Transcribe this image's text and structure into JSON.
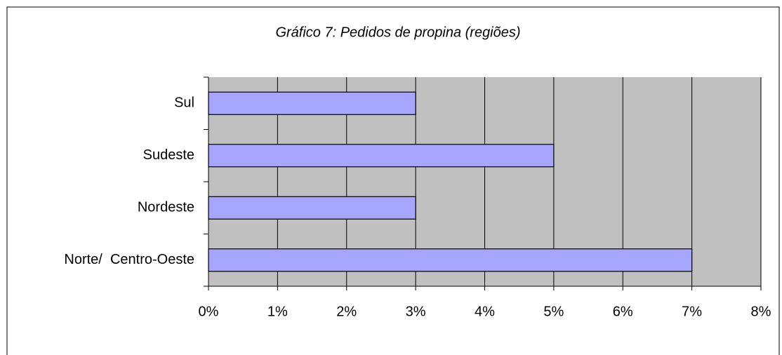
{
  "chart_data": {
    "type": "bar",
    "orientation": "horizontal",
    "title": "Gráfico 7: Pedidos de propina (regiões)",
    "categories": [
      "Sul",
      "Sudeste",
      "Nordeste",
      "Norte/  Centro-Oeste"
    ],
    "values": [
      3,
      5,
      3,
      7
    ],
    "color": "#a6a6ff",
    "xlim": [
      0,
      8
    ],
    "xticks": [
      {
        "value": 0,
        "label": "0%"
      },
      {
        "value": 1,
        "label": "1%"
      },
      {
        "value": 2,
        "label": "2%"
      },
      {
        "value": 3,
        "label": "3%"
      },
      {
        "value": 4,
        "label": "4%"
      },
      {
        "value": 5,
        "label": "5%"
      },
      {
        "value": 6,
        "label": "6%"
      },
      {
        "value": 7,
        "label": "7%"
      },
      {
        "value": 8,
        "label": "8%"
      }
    ],
    "grid": true
  }
}
